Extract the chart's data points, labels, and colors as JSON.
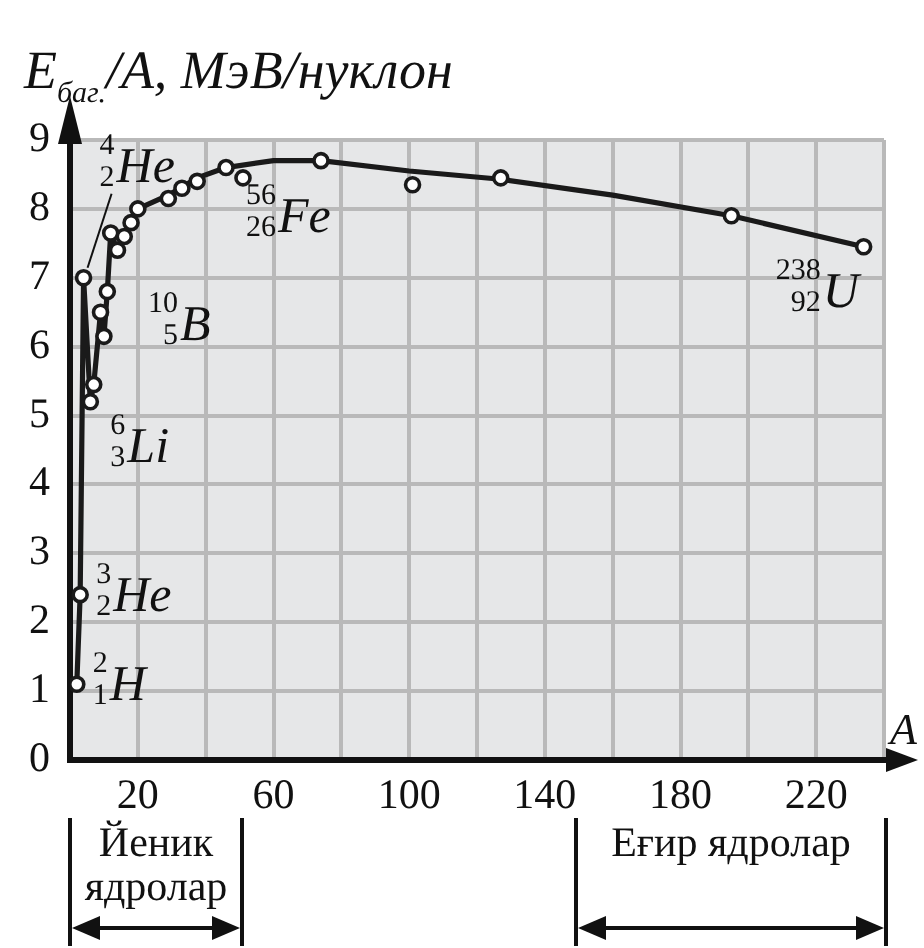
{
  "chart_data": {
    "type": "line",
    "ylabel": "E$_{баг.}$/A, МэВ/нуклон",
    "xlabel": "A",
    "xlim": [
      0,
      240
    ],
    "ylim": [
      0,
      9
    ],
    "xticks": [
      {
        "value": 0,
        "label": null
      },
      20,
      {
        "value": 40,
        "label": null
      },
      60,
      {
        "value": 80,
        "label": null
      },
      100,
      {
        "value": 120,
        "label": null
      },
      140,
      {
        "value": 160,
        "label": null
      },
      180,
      {
        "value": 200,
        "label": null
      },
      220,
      {
        "value": 240,
        "label": null
      }
    ],
    "yticks": [
      0,
      1,
      2,
      3,
      4,
      5,
      6,
      7,
      8,
      9
    ],
    "grid": true,
    "legend": false,
    "series": [
      {
        "type": "line",
        "color": "#1a1a1a",
        "marker": "none",
        "x": [
          2,
          3,
          4,
          6,
          7,
          9,
          10,
          11,
          12,
          14,
          16,
          18,
          20,
          29,
          37.5,
          46,
          60,
          74,
          100,
          127,
          160,
          195,
          234
        ],
        "values": [
          1.1,
          2.4,
          7.0,
          5.2,
          5.45,
          6.5,
          6.15,
          6.8,
          7.65,
          7.4,
          7.6,
          7.8,
          8.0,
          8.2,
          8.45,
          8.6,
          8.7,
          8.7,
          8.55,
          8.43,
          8.2,
          7.9,
          7.45
        ]
      },
      {
        "type": "scatter",
        "color": "#1a1a1a",
        "marker": "circle",
        "x": [
          2,
          3,
          4,
          6,
          7,
          9,
          10,
          11,
          12,
          14,
          16,
          18,
          20,
          29,
          33,
          37.5,
          46,
          51,
          74,
          101,
          127,
          195,
          234
        ],
        "values": [
          1.1,
          2.4,
          7.0,
          5.2,
          5.45,
          6.5,
          6.15,
          6.8,
          7.65,
          7.4,
          7.6,
          7.8,
          8.0,
          8.15,
          8.3,
          8.4,
          8.6,
          8.45,
          8.7,
          8.35,
          8.45,
          7.9,
          7.45
        ]
      }
    ],
    "annotations": [
      {
        "text": "$^{2}$$_{1}$H",
        "x": 2,
        "y": 1.1
      },
      {
        "text": "$^{3}$$_{2}$He",
        "x": 3,
        "y": 2.4
      },
      {
        "text": "$^{4}$$_{2}$He",
        "x": 4,
        "y": 7.0
      },
      {
        "text": "$^{6}$$_{3}$Li",
        "x": 6,
        "y": 5.2
      },
      {
        "text": "$^{10}$$_{5}$B",
        "x": 10,
        "y": 6.15
      },
      {
        "text": "$^{56}$$_{26}$Fe",
        "x": 46,
        "y": 8.6
      },
      {
        "text": "$^{238}$$_{92}$U",
        "x": 234,
        "y": 7.45
      },
      "Йеник ядролар",
      "Еғир ядролар"
    ]
  }
}
